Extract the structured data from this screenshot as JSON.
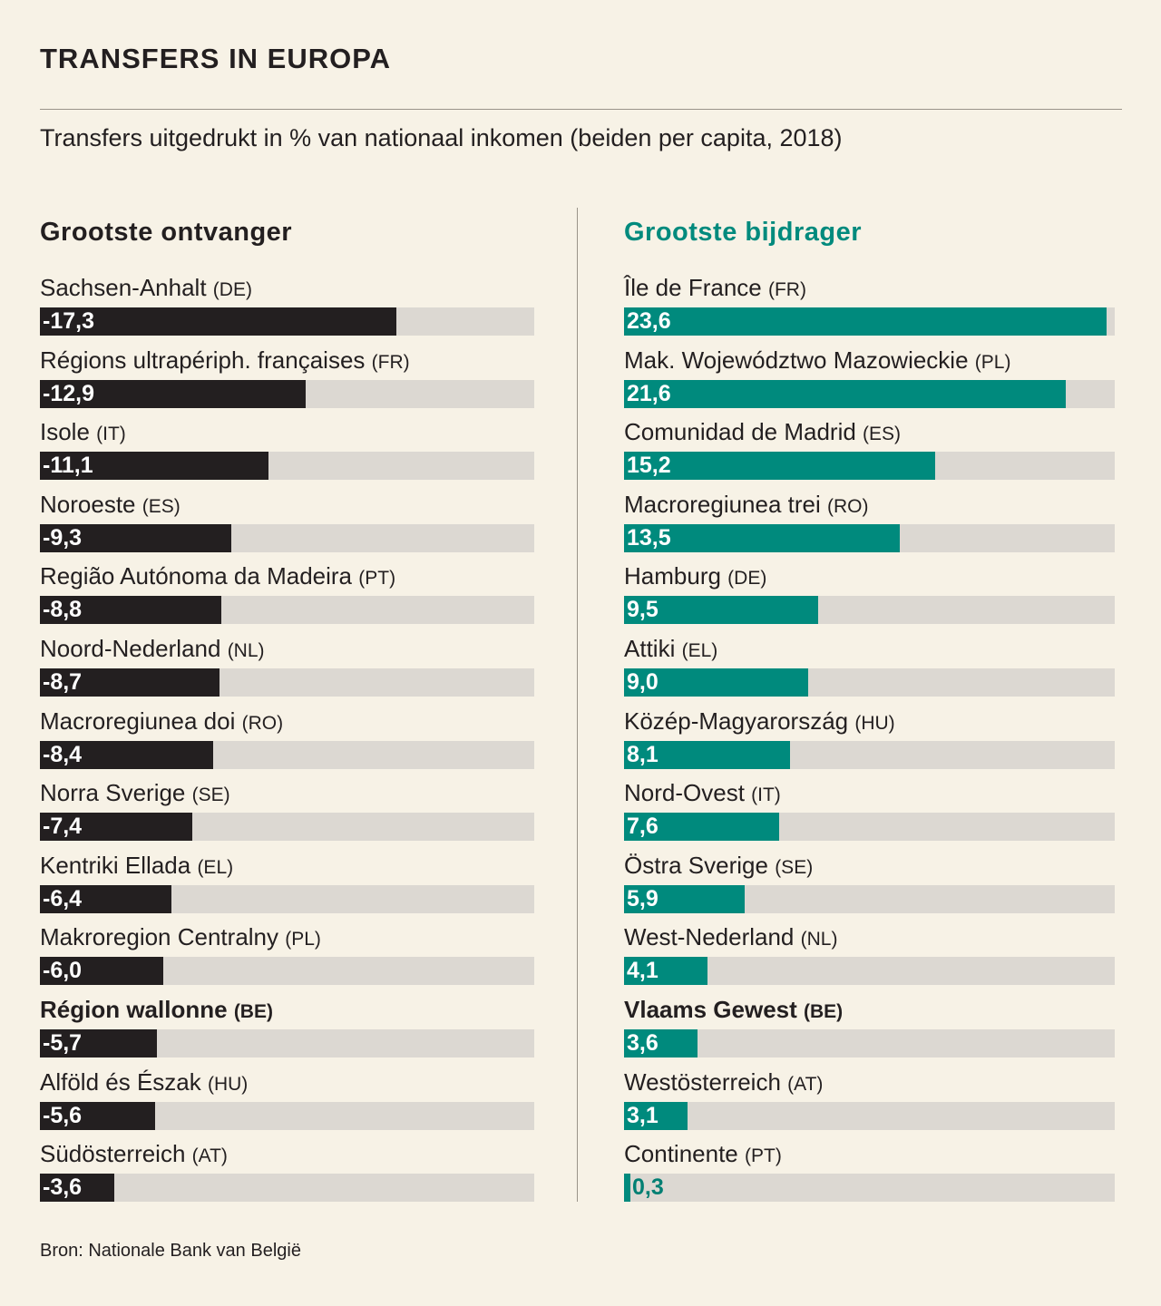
{
  "title": "TRANSFERS IN EUROPA",
  "subtitle": "Transfers uitgedrukt in % van nationaal inkomen (beiden per capita, 2018)",
  "source": "Bron: Nationale Bank van België",
  "colors": {
    "receiver": "#231f20",
    "contributor": "#008a7d",
    "track": "#dcd8d2",
    "background": "#f7f2e6"
  },
  "chart_data": [
    {
      "type": "bar",
      "title": "Grootste ontvanger",
      "series": [
        {
          "name": "Grootste ontvanger",
          "values": [
            -17.3,
            -12.9,
            -11.1,
            -9.3,
            -8.8,
            -8.7,
            -8.4,
            -7.4,
            -6.4,
            -6.0,
            -5.7,
            -5.6,
            -3.6
          ],
          "labels": [
            "-17,3",
            "-12,9",
            "-11,1",
            "-9,3",
            "-8,8",
            "-8,7",
            "-8,4",
            "-7,4",
            "-6,4",
            "-6,0",
            "-5,7",
            "-5,6",
            "-3,6"
          ]
        }
      ],
      "categories": [
        "Sachsen-Anhalt (DE)",
        "Régions ultrapériph. françaises (FR)",
        "Isole (IT)",
        "Noroeste (ES)",
        "Região Autónoma da Madeira (PT)",
        "Noord-Nederland (NL)",
        "Macroregiunea doi (RO)",
        "Norra Sverige (SE)",
        "Kentriki Ellada (EL)",
        "Makroregion Centralny (PL)",
        "Région wallonne (BE)",
        "Alföld és Észak (HU)",
        "Südösterreich (AT)"
      ],
      "regions": [
        {
          "name": "Sachsen-Anhalt",
          "country": "(DE)"
        },
        {
          "name": "Régions ultrapériph. françaises",
          "country": "(FR)"
        },
        {
          "name": "Isole",
          "country": "(IT)"
        },
        {
          "name": "Noroeste",
          "country": "(ES)"
        },
        {
          "name": "Região Autónoma da Madeira",
          "country": "(PT)"
        },
        {
          "name": "Noord-Nederland",
          "country": "(NL)"
        },
        {
          "name": "Macroregiunea doi",
          "country": "(RO)"
        },
        {
          "name": "Norra Sverige",
          "country": "(SE)"
        },
        {
          "name": "Kentriki Ellada",
          "country": "(EL)"
        },
        {
          "name": "Makroregion Centralny",
          "country": "(PL)"
        },
        {
          "name": "Région wallonne",
          "country": "(BE)",
          "highlight": true
        },
        {
          "name": "Alföld és Észak",
          "country": "(HU)"
        },
        {
          "name": "Südösterreich",
          "country": "(AT)"
        }
      ],
      "ylim": [
        0,
        24
      ],
      "orientation": "horizontal",
      "grid": false,
      "legend": "none"
    },
    {
      "type": "bar",
      "title": "Grootste bijdrager",
      "series": [
        {
          "name": "Grootste bijdrager",
          "values": [
            23.6,
            21.6,
            15.2,
            13.5,
            9.5,
            9.0,
            8.1,
            7.6,
            5.9,
            4.1,
            3.6,
            3.1,
            0.3
          ],
          "labels": [
            "23,6",
            "21,6",
            "15,2",
            "13,5",
            "9,5",
            "9,0",
            "8,1",
            "7,6",
            "5,9",
            "4,1",
            "3,6",
            "3,1",
            "0,3"
          ]
        }
      ],
      "categories": [
        "Île de France (FR)",
        "Mak. Województwo Mazowieckie (PL)",
        "Comunidad de Madrid (ES)",
        "Macroregiunea trei (RO)",
        "Hamburg (DE)",
        "Attiki (EL)",
        "Közép-Magyarország (HU)",
        "Nord-Ovest (IT)",
        "Östra Sverige (SE)",
        "West-Nederland (NL)",
        "Vlaams Gewest (BE)",
        "Westösterreich (AT)",
        "Continente (PT)"
      ],
      "regions": [
        {
          "name": "Île de France",
          "country": "(FR)"
        },
        {
          "name": "Mak. Województwo Mazowieckie",
          "country": "(PL)"
        },
        {
          "name": "Comunidad de Madrid",
          "country": "(ES)"
        },
        {
          "name": "Macroregiunea trei",
          "country": "(RO)"
        },
        {
          "name": "Hamburg",
          "country": "(DE)"
        },
        {
          "name": "Attiki",
          "country": "(EL)"
        },
        {
          "name": "Közép-Magyarország",
          "country": "(HU)"
        },
        {
          "name": "Nord-Ovest",
          "country": "(IT)"
        },
        {
          "name": "Östra Sverige",
          "country": "(SE)"
        },
        {
          "name": "West-Nederland",
          "country": "(NL)"
        },
        {
          "name": "Vlaams Gewest",
          "country": "(BE)",
          "highlight": true
        },
        {
          "name": "Westösterreich",
          "country": "(AT)"
        },
        {
          "name": "Continente",
          "country": "(PT)"
        }
      ],
      "ylim": [
        0,
        24
      ],
      "orientation": "horizontal",
      "grid": false,
      "legend": "none"
    }
  ]
}
